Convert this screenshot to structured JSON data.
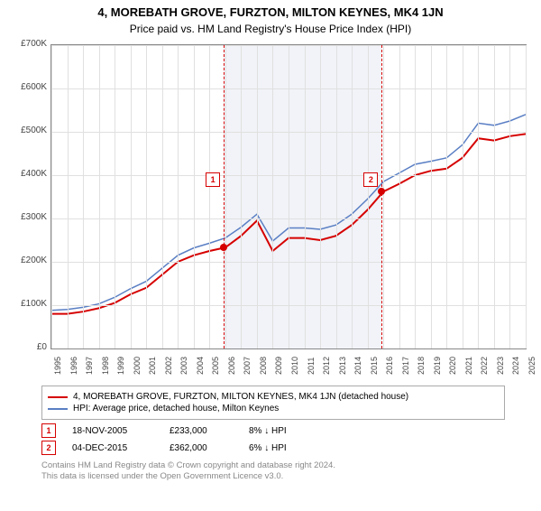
{
  "title_line1": "4, MOREBATH GROVE, FURZTON, MILTON KEYNES, MK4 1JN",
  "title_line2": "Price paid vs. HM Land Registry's House Price Index (HPI)",
  "chart": {
    "type": "line",
    "background_color": "#ffffff",
    "grid_color": "#e0e0e0",
    "ylim": [
      0,
      700000
    ],
    "y_ticks": [
      0,
      100000,
      200000,
      300000,
      400000,
      500000,
      600000,
      700000
    ],
    "y_tick_labels": [
      "£0",
      "£100K",
      "£200K",
      "£300K",
      "£400K",
      "£500K",
      "£600K",
      "£700K"
    ],
    "x_years": [
      1995,
      1996,
      1997,
      1998,
      1999,
      2000,
      2001,
      2002,
      2003,
      2004,
      2005,
      2006,
      2007,
      2008,
      2009,
      2010,
      2011,
      2012,
      2013,
      2014,
      2015,
      2016,
      2017,
      2018,
      2019,
      2020,
      2021,
      2022,
      2023,
      2024,
      2025
    ],
    "shade_from_year": 2005.9,
    "shade_to_year": 2015.9,
    "shade_color": "#f1f3f8",
    "series_red": {
      "label": "4, MOREBATH GROVE, FURZTON, MILTON KEYNES, MK4 1JN (detached house)",
      "color": "#d60000",
      "width": 2,
      "years": [
        1995,
        1996,
        1997,
        1998,
        1999,
        2000,
        2001,
        2002,
        2003,
        2004,
        2005,
        2006,
        2007,
        2008,
        2009,
        2010,
        2011,
        2012,
        2013,
        2014,
        2015,
        2016,
        2017,
        2018,
        2019,
        2020,
        2021,
        2022,
        2023,
        2024,
        2025
      ],
      "values": [
        80000,
        80000,
        85000,
        93000,
        105000,
        125000,
        140000,
        170000,
        200000,
        215000,
        225000,
        233000,
        260000,
        295000,
        225000,
        255000,
        255000,
        250000,
        260000,
        285000,
        320000,
        362000,
        380000,
        400000,
        410000,
        415000,
        440000,
        485000,
        480000,
        490000,
        495000
      ]
    },
    "series_blue": {
      "label": "HPI: Average price, detached house, Milton Keynes",
      "color": "#5a7fc4",
      "width": 1.5,
      "years": [
        1995,
        1996,
        1997,
        1998,
        1999,
        2000,
        2001,
        2002,
        2003,
        2004,
        2005,
        2006,
        2007,
        2008,
        2009,
        2010,
        2011,
        2012,
        2013,
        2014,
        2015,
        2016,
        2017,
        2018,
        2019,
        2020,
        2021,
        2022,
        2023,
        2024,
        2025
      ],
      "values": [
        88000,
        90000,
        95000,
        103000,
        118000,
        138000,
        155000,
        185000,
        215000,
        232000,
        243000,
        255000,
        280000,
        310000,
        248000,
        278000,
        278000,
        275000,
        285000,
        310000,
        345000,
        385000,
        405000,
        425000,
        432000,
        440000,
        470000,
        520000,
        515000,
        525000,
        540000
      ]
    },
    "markers": [
      {
        "id": "1",
        "year": 2005.9,
        "value": 233000,
        "color": "#d60000"
      },
      {
        "id": "2",
        "year": 2015.9,
        "value": 362000,
        "color": "#d60000"
      }
    ],
    "marker_box_y_offset": 0.42
  },
  "legend": {
    "items": [
      {
        "color": "#d60000",
        "text": "4, MOREBATH GROVE, FURZTON, MILTON KEYNES, MK4 1JN (detached house)"
      },
      {
        "color": "#5a7fc4",
        "text": "HPI: Average price, detached house, Milton Keynes"
      }
    ]
  },
  "transactions": [
    {
      "id": "1",
      "date": "18-NOV-2005",
      "price": "£233,000",
      "pct": "8% ↓ HPI",
      "box_color": "#d60000"
    },
    {
      "id": "2",
      "date": "04-DEC-2015",
      "price": "£362,000",
      "pct": "6% ↓ HPI",
      "box_color": "#d60000"
    }
  ],
  "footer_line1": "Contains HM Land Registry data © Crown copyright and database right 2024.",
  "footer_line2": "This data is licensed under the Open Government Licence v3.0."
}
